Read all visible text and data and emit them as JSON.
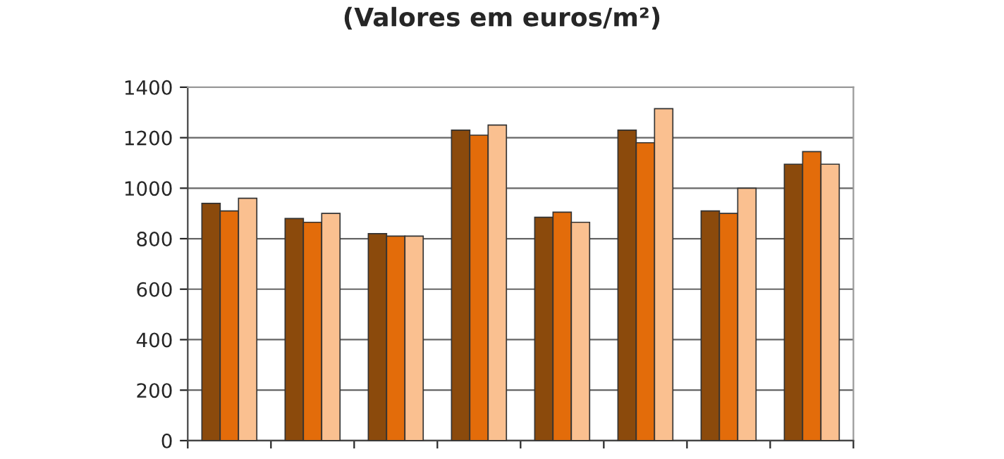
{
  "chart_data": {
    "type": "bar",
    "title": "(Valores em euros/m²)",
    "categories": [
      null,
      null,
      null,
      null,
      null,
      null,
      null,
      null
    ],
    "series": [
      {
        "color": "#8b4a0c",
        "values": [
          940,
          880,
          820,
          1230,
          885,
          1230,
          910,
          1095
        ]
      },
      {
        "color": "#e36c0a",
        "values": [
          910,
          865,
          810,
          1210,
          905,
          1180,
          900,
          1145
        ]
      },
      {
        "color": "#fac090",
        "values": [
          960,
          900,
          810,
          1250,
          865,
          1315,
          1000,
          1095
        ]
      }
    ],
    "ylim": [
      0,
      1400
    ],
    "yticks": [
      0,
      200,
      400,
      600,
      800,
      1000,
      1200,
      1400
    ],
    "grid": "y",
    "legend": false
  }
}
